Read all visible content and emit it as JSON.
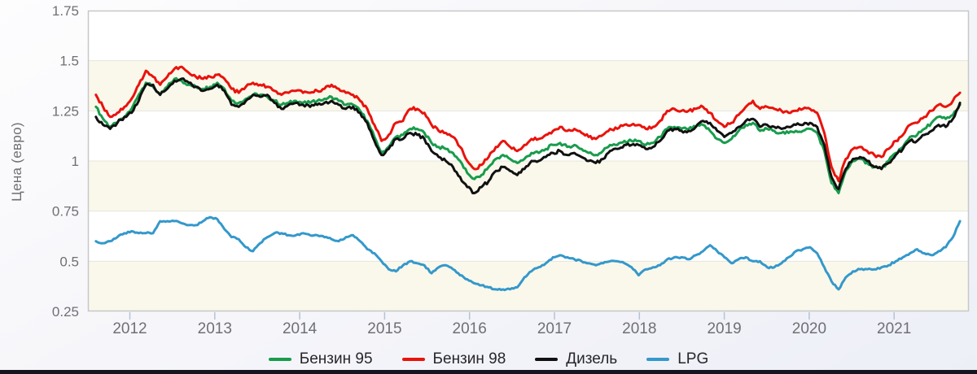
{
  "colors": {
    "plot_background": "#ffffff",
    "band_fill": "#faf8eb",
    "grid_line": "#e5e5de",
    "plot_border": "#c7c7c9",
    "tick_mark": "#b7c3d3",
    "tick_text": "#6f6f75",
    "legend_text": "#26262b",
    "page_background": "#f3f4f9",
    "bottom_edge": "#15151d"
  },
  "chart_data": {
    "type": "line",
    "title": "",
    "xlabel": "",
    "ylabel": "Цена (евро)",
    "ylim": [
      0.25,
      1.75
    ],
    "xlim": [
      2011.5,
      2021.9
    ],
    "y_ticks": [
      0.25,
      0.5,
      0.75,
      1.0,
      1.25,
      1.5,
      1.75
    ],
    "y_tick_labels": [
      "0.25",
      "0.5",
      "0.75",
      "1",
      "1.25",
      "1.5",
      "1.75"
    ],
    "x_tick_labels": [
      "2012",
      "2013",
      "2014",
      "2015",
      "2016",
      "2017",
      "2018",
      "2019",
      "2020",
      "2021"
    ],
    "grid": "horizontal alternating bands, line at every 0.25",
    "legend_position": "bottom",
    "x_start": 2011.6,
    "x_step_years": 0.0841,
    "series": [
      {
        "name": "Бензин 95",
        "slug": "benzin-95",
        "color": "#189c4c",
        "values": [
          1.27,
          1.21,
          1.17,
          1.19,
          1.22,
          1.26,
          1.33,
          1.39,
          1.37,
          1.33,
          1.37,
          1.41,
          1.4,
          1.38,
          1.37,
          1.36,
          1.37,
          1.39,
          1.36,
          1.3,
          1.29,
          1.31,
          1.33,
          1.33,
          1.32,
          1.3,
          1.28,
          1.29,
          1.3,
          1.29,
          1.29,
          1.3,
          1.31,
          1.32,
          1.3,
          1.28,
          1.28,
          1.25,
          1.2,
          1.12,
          1.04,
          1.07,
          1.12,
          1.13,
          1.16,
          1.16,
          1.14,
          1.09,
          1.07,
          1.06,
          1.04,
          1.0,
          0.94,
          0.91,
          0.93,
          0.97,
          1.01,
          1.03,
          1.01,
          0.99,
          1.01,
          1.04,
          1.04,
          1.06,
          1.08,
          1.09,
          1.07,
          1.08,
          1.06,
          1.04,
          1.03,
          1.05,
          1.08,
          1.08,
          1.1,
          1.1,
          1.1,
          1.08,
          1.09,
          1.12,
          1.16,
          1.17,
          1.16,
          1.16,
          1.17,
          1.18,
          1.15,
          1.11,
          1.09,
          1.11,
          1.15,
          1.18,
          1.19,
          1.15,
          1.16,
          1.15,
          1.14,
          1.14,
          1.15,
          1.15,
          1.16,
          1.14,
          1.05,
          0.89,
          0.84,
          0.95,
          1.0,
          1.01,
          0.99,
          0.97,
          0.96,
          1.0,
          1.04,
          1.07,
          1.12,
          1.13,
          1.16,
          1.19,
          1.22,
          1.21,
          1.23,
          1.28
        ]
      },
      {
        "name": "Бензин 98",
        "slug": "benzin-98",
        "color": "#e9130c",
        "values": [
          1.33,
          1.27,
          1.22,
          1.24,
          1.27,
          1.31,
          1.38,
          1.45,
          1.42,
          1.38,
          1.42,
          1.46,
          1.47,
          1.44,
          1.42,
          1.41,
          1.42,
          1.43,
          1.41,
          1.36,
          1.34,
          1.37,
          1.39,
          1.38,
          1.37,
          1.35,
          1.33,
          1.34,
          1.35,
          1.34,
          1.34,
          1.35,
          1.36,
          1.38,
          1.36,
          1.34,
          1.33,
          1.3,
          1.26,
          1.18,
          1.1,
          1.13,
          1.19,
          1.2,
          1.26,
          1.26,
          1.24,
          1.18,
          1.15,
          1.14,
          1.12,
          1.07,
          1.0,
          0.96,
          0.98,
          1.02,
          1.07,
          1.1,
          1.07,
          1.05,
          1.08,
          1.11,
          1.11,
          1.13,
          1.15,
          1.17,
          1.15,
          1.16,
          1.14,
          1.12,
          1.11,
          1.13,
          1.16,
          1.16,
          1.18,
          1.18,
          1.18,
          1.16,
          1.17,
          1.2,
          1.25,
          1.26,
          1.25,
          1.25,
          1.26,
          1.27,
          1.24,
          1.2,
          1.17,
          1.19,
          1.23,
          1.27,
          1.3,
          1.26,
          1.27,
          1.26,
          1.25,
          1.24,
          1.25,
          1.26,
          1.26,
          1.24,
          1.14,
          0.97,
          0.9,
          1.01,
          1.06,
          1.07,
          1.05,
          1.03,
          1.02,
          1.06,
          1.1,
          1.13,
          1.18,
          1.19,
          1.22,
          1.25,
          1.28,
          1.27,
          1.3,
          1.34
        ]
      },
      {
        "name": "Дизель",
        "slug": "dizel",
        "color": "#111111",
        "values": [
          1.22,
          1.18,
          1.16,
          1.19,
          1.22,
          1.24,
          1.3,
          1.38,
          1.38,
          1.33,
          1.36,
          1.4,
          1.41,
          1.39,
          1.37,
          1.35,
          1.36,
          1.38,
          1.35,
          1.28,
          1.27,
          1.3,
          1.33,
          1.32,
          1.33,
          1.29,
          1.26,
          1.28,
          1.29,
          1.28,
          1.27,
          1.28,
          1.29,
          1.3,
          1.28,
          1.26,
          1.27,
          1.24,
          1.19,
          1.1,
          1.03,
          1.06,
          1.11,
          1.11,
          1.14,
          1.13,
          1.11,
          1.05,
          1.02,
          1.0,
          0.97,
          0.92,
          0.87,
          0.84,
          0.87,
          0.9,
          0.95,
          0.97,
          0.95,
          0.93,
          0.96,
          1.0,
          1.0,
          1.02,
          1.04,
          1.05,
          1.03,
          1.04,
          1.02,
          1.0,
          0.99,
          1.01,
          1.05,
          1.06,
          1.08,
          1.08,
          1.08,
          1.06,
          1.07,
          1.1,
          1.15,
          1.16,
          1.15,
          1.15,
          1.17,
          1.2,
          1.19,
          1.15,
          1.12,
          1.14,
          1.17,
          1.2,
          1.21,
          1.17,
          1.18,
          1.17,
          1.16,
          1.17,
          1.18,
          1.18,
          1.19,
          1.17,
          1.08,
          0.92,
          0.86,
          0.96,
          1.01,
          1.02,
          1.0,
          0.97,
          0.96,
          0.99,
          1.03,
          1.06,
          1.1,
          1.1,
          1.13,
          1.15,
          1.18,
          1.17,
          1.21,
          1.29
        ]
      },
      {
        "name": "LPG",
        "slug": "lpg",
        "color": "#3498cb",
        "values": [
          0.6,
          0.59,
          0.6,
          0.62,
          0.64,
          0.65,
          0.64,
          0.64,
          0.64,
          0.7,
          0.7,
          0.7,
          0.69,
          0.68,
          0.68,
          0.7,
          0.72,
          0.71,
          0.66,
          0.62,
          0.61,
          0.57,
          0.55,
          0.59,
          0.62,
          0.64,
          0.64,
          0.63,
          0.63,
          0.64,
          0.63,
          0.63,
          0.62,
          0.61,
          0.6,
          0.62,
          0.63,
          0.6,
          0.56,
          0.54,
          0.5,
          0.46,
          0.45,
          0.48,
          0.5,
          0.49,
          0.48,
          0.44,
          0.47,
          0.48,
          0.46,
          0.43,
          0.41,
          0.39,
          0.38,
          0.37,
          0.36,
          0.36,
          0.36,
          0.37,
          0.42,
          0.45,
          0.47,
          0.49,
          0.52,
          0.53,
          0.52,
          0.51,
          0.5,
          0.49,
          0.48,
          0.49,
          0.5,
          0.5,
          0.49,
          0.47,
          0.43,
          0.46,
          0.47,
          0.48,
          0.51,
          0.52,
          0.52,
          0.51,
          0.53,
          0.55,
          0.58,
          0.55,
          0.52,
          0.49,
          0.51,
          0.52,
          0.5,
          0.5,
          0.47,
          0.47,
          0.49,
          0.52,
          0.55,
          0.56,
          0.57,
          0.54,
          0.47,
          0.4,
          0.36,
          0.42,
          0.45,
          0.46,
          0.46,
          0.46,
          0.47,
          0.48,
          0.5,
          0.52,
          0.54,
          0.56,
          0.54,
          0.53,
          0.55,
          0.57,
          0.62,
          0.7
        ]
      }
    ]
  }
}
